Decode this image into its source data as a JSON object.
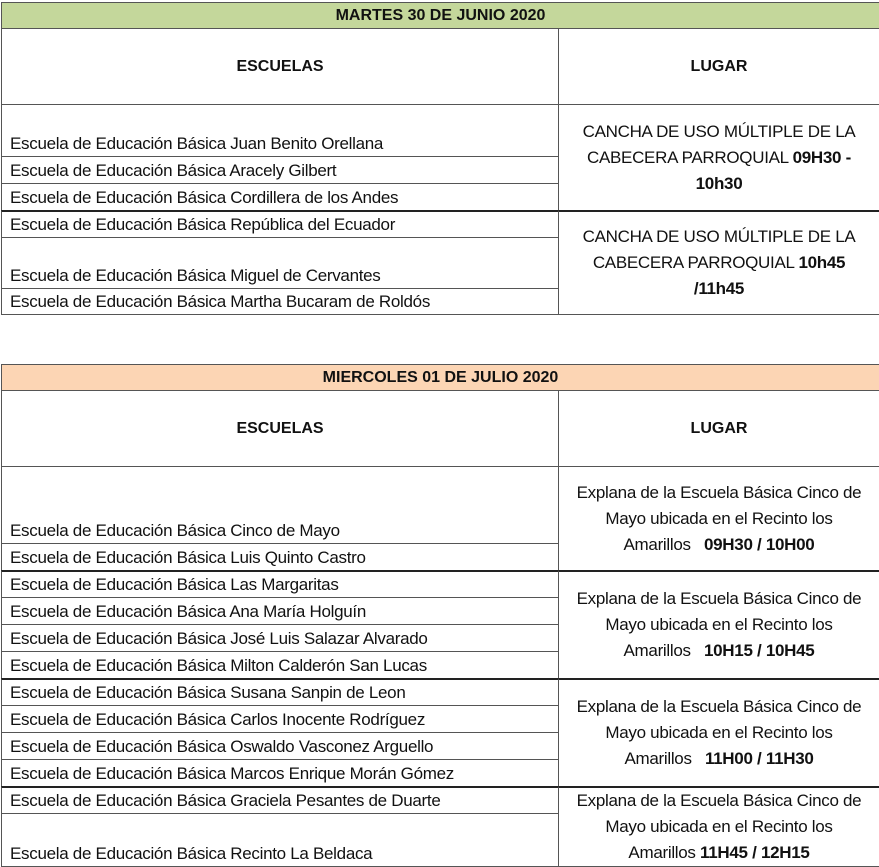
{
  "tables": [
    {
      "title": "MARTES 30 DE JUNIO 2020",
      "header_color": "#c4d79b",
      "col_schools": "ESCUELAS",
      "col_place": "LUGAR",
      "schools": [
        "Escuela de Educación Básica Juan Benito Orellana",
        "Escuela de Educación Básica Aracely Gilbert",
        "Escuela de Educación Básica Cordillera de los Andes",
        "Escuela de Educación Básica República del Ecuador",
        "Escuela de Educación Básica Miguel de Cervantes",
        "Escuela de Educación Básica Martha Bucaram de Roldós"
      ],
      "places": [
        {
          "text": "CANCHA DE USO MÚLTIPLE DE LA CABECERA PARROQUIAL ",
          "time": "09H30 - 10h30"
        },
        {
          "text": "CANCHA DE USO MÚLTIPLE DE LA CABECERA PARROQUIAL ",
          "time": "10h45 /11h45"
        }
      ]
    },
    {
      "title": "MIERCOLES 01 DE JULIO 2020",
      "header_color": "#fcd5b4",
      "col_schools": "ESCUELAS",
      "col_place": "LUGAR",
      "schools": [
        "Escuela de Educación Básica Cinco de Mayo",
        "Escuela de Educación Básica Luis Quinto Castro",
        "Escuela de Educación Básica Las Margaritas",
        "Escuela de Educación Básica Ana María Holguín",
        "Escuela de Educación Básica José Luis Salazar Alvarado",
        "Escuela de Educación Básica Milton Calderón San Lucas",
        "Escuela de Educación Básica Susana Sanpin de Leon",
        "Escuela de Educación Básica Carlos Inocente Rodríguez",
        "Escuela de Educación Básica Oswaldo Vasconez Arguello",
        "Escuela de Educación Básica Marcos Enrique Morán Gómez",
        "Escuela de Educación Básica Graciela Pesantes de Duarte",
        "Escuela de Educación Básica Recinto La Beldaca"
      ],
      "places": [
        {
          "text": "Explana de la Escuela Básica Cinco de Mayo ubicada en el Recinto los Amarillos   ",
          "time": "09H30 / 10H00"
        },
        {
          "text": "Explana de la Escuela Básica Cinco de Mayo ubicada en el Recinto los Amarillos   ",
          "time": "10H15 / 10H45"
        },
        {
          "text": "Explana de la Escuela Básica Cinco de Mayo ubicada en el Recinto los Amarillos   ",
          "time": "11H00 / 11H30"
        },
        {
          "text": "Explana de la Escuela Básica Cinco de Mayo ubicada en el Recinto los Amarillos ",
          "time": "11H45 / 12H15"
        }
      ]
    }
  ]
}
